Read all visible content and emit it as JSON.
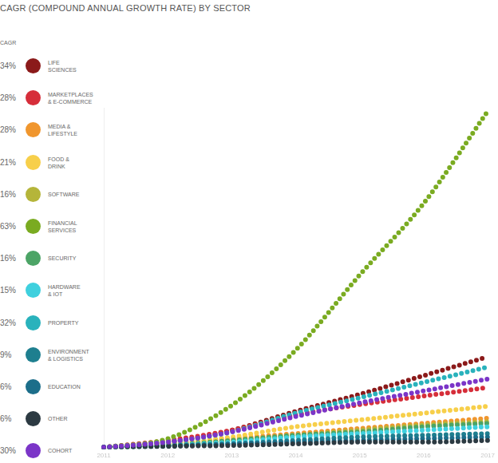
{
  "chart_data": {
    "type": "line",
    "title": "CAGR (COMPOUND ANNUAL GROWTH RATE) BY SECTOR",
    "legend_title": "CAGR",
    "legend": "left",
    "line_style": "dotted",
    "grid": false,
    "tick_labels": "x",
    "categories": [
      "2011",
      "2012",
      "2013",
      "2014",
      "2015",
      "2016",
      "2017"
    ],
    "ylim": [
      0,
      100
    ],
    "series": [
      {
        "name": "LIFE\nSCIENCES",
        "color": "#8b1a1a",
        "cagr": 34,
        "cagr_label": "34%",
        "values": [
          0.5,
          2,
          5.5,
          11,
          16,
          21.5,
          27
        ]
      },
      {
        "name": "MARKETPLACES\n& E-COMMERCE",
        "color": "#d62e3a",
        "cagr": 28,
        "cagr_label": "28%",
        "values": [
          0.5,
          2.5,
          5.5,
          10,
          13,
          15.5,
          18
        ]
      },
      {
        "name": "MEDIA &\nLIFESTYLE",
        "color": "#f0962e",
        "cagr": 28,
        "cagr_label": "28%",
        "values": [
          0.5,
          1.5,
          3,
          4.5,
          6,
          7.5,
          9
        ]
      },
      {
        "name": "FOOD &\nDRINK",
        "color": "#f7cf4a",
        "cagr": 21,
        "cagr_label": "21%",
        "values": [
          0.5,
          1.5,
          3.5,
          6.5,
          8.5,
          10.5,
          12.5
        ]
      },
      {
        "name": "SOFTWARE",
        "color": "#b5b53a",
        "cagr": 16,
        "cagr_label": "16%",
        "values": [
          0.5,
          1,
          2.5,
          4,
          5.5,
          7,
          8
        ]
      },
      {
        "name": "FINANCIAL\nSERVICES",
        "color": "#7aab21",
        "cagr": 63,
        "cagr_label": "63%",
        "values": [
          0.5,
          3,
          12.8,
          29,
          51,
          72,
          99
        ]
      },
      {
        "name": "SECURITY",
        "color": "#4ca466",
        "cagr": 16,
        "cagr_label": "16%",
        "values": [
          0.5,
          1,
          2.5,
          4,
          5,
          6.5,
          7.5
        ]
      },
      {
        "name": "HARDWARE\n& IOT",
        "color": "#3fd0de",
        "cagr": 15,
        "cagr_label": "15%",
        "values": [
          0.5,
          1,
          2,
          3.5,
          4.5,
          5.5,
          6.5
        ]
      },
      {
        "name": "PROPERTY",
        "color": "#29b2bc",
        "cagr": 32,
        "cagr_label": "32%",
        "values": [
          0.5,
          2,
          5,
          10.5,
          15,
          19.5,
          24
        ]
      },
      {
        "name": "ENVIRONMENT\n& LOGISTICS",
        "color": "#1e7f8f",
        "cagr": 9,
        "cagr_label": "9%",
        "values": [
          0.5,
          1,
          1.5,
          2.5,
          3.5,
          4,
          4.5
        ]
      },
      {
        "name": "EDUCATION",
        "color": "#1c6e8a",
        "cagr": 6,
        "cagr_label": "6%",
        "values": [
          0.5,
          0.8,
          1.5,
          2,
          2.5,
          3,
          3.5
        ]
      },
      {
        "name": "OTHER",
        "color": "#2c3a42",
        "cagr": 6,
        "cagr_label": "6%",
        "values": [
          0.5,
          0.8,
          1,
          1.5,
          2,
          2,
          2.5
        ]
      },
      {
        "name": "COHORT",
        "color": "#7b35c8",
        "cagr": 30,
        "cagr_label": "30%",
        "values": [
          0.5,
          2,
          5,
          9.5,
          13.5,
          17,
          20.5
        ]
      }
    ]
  }
}
